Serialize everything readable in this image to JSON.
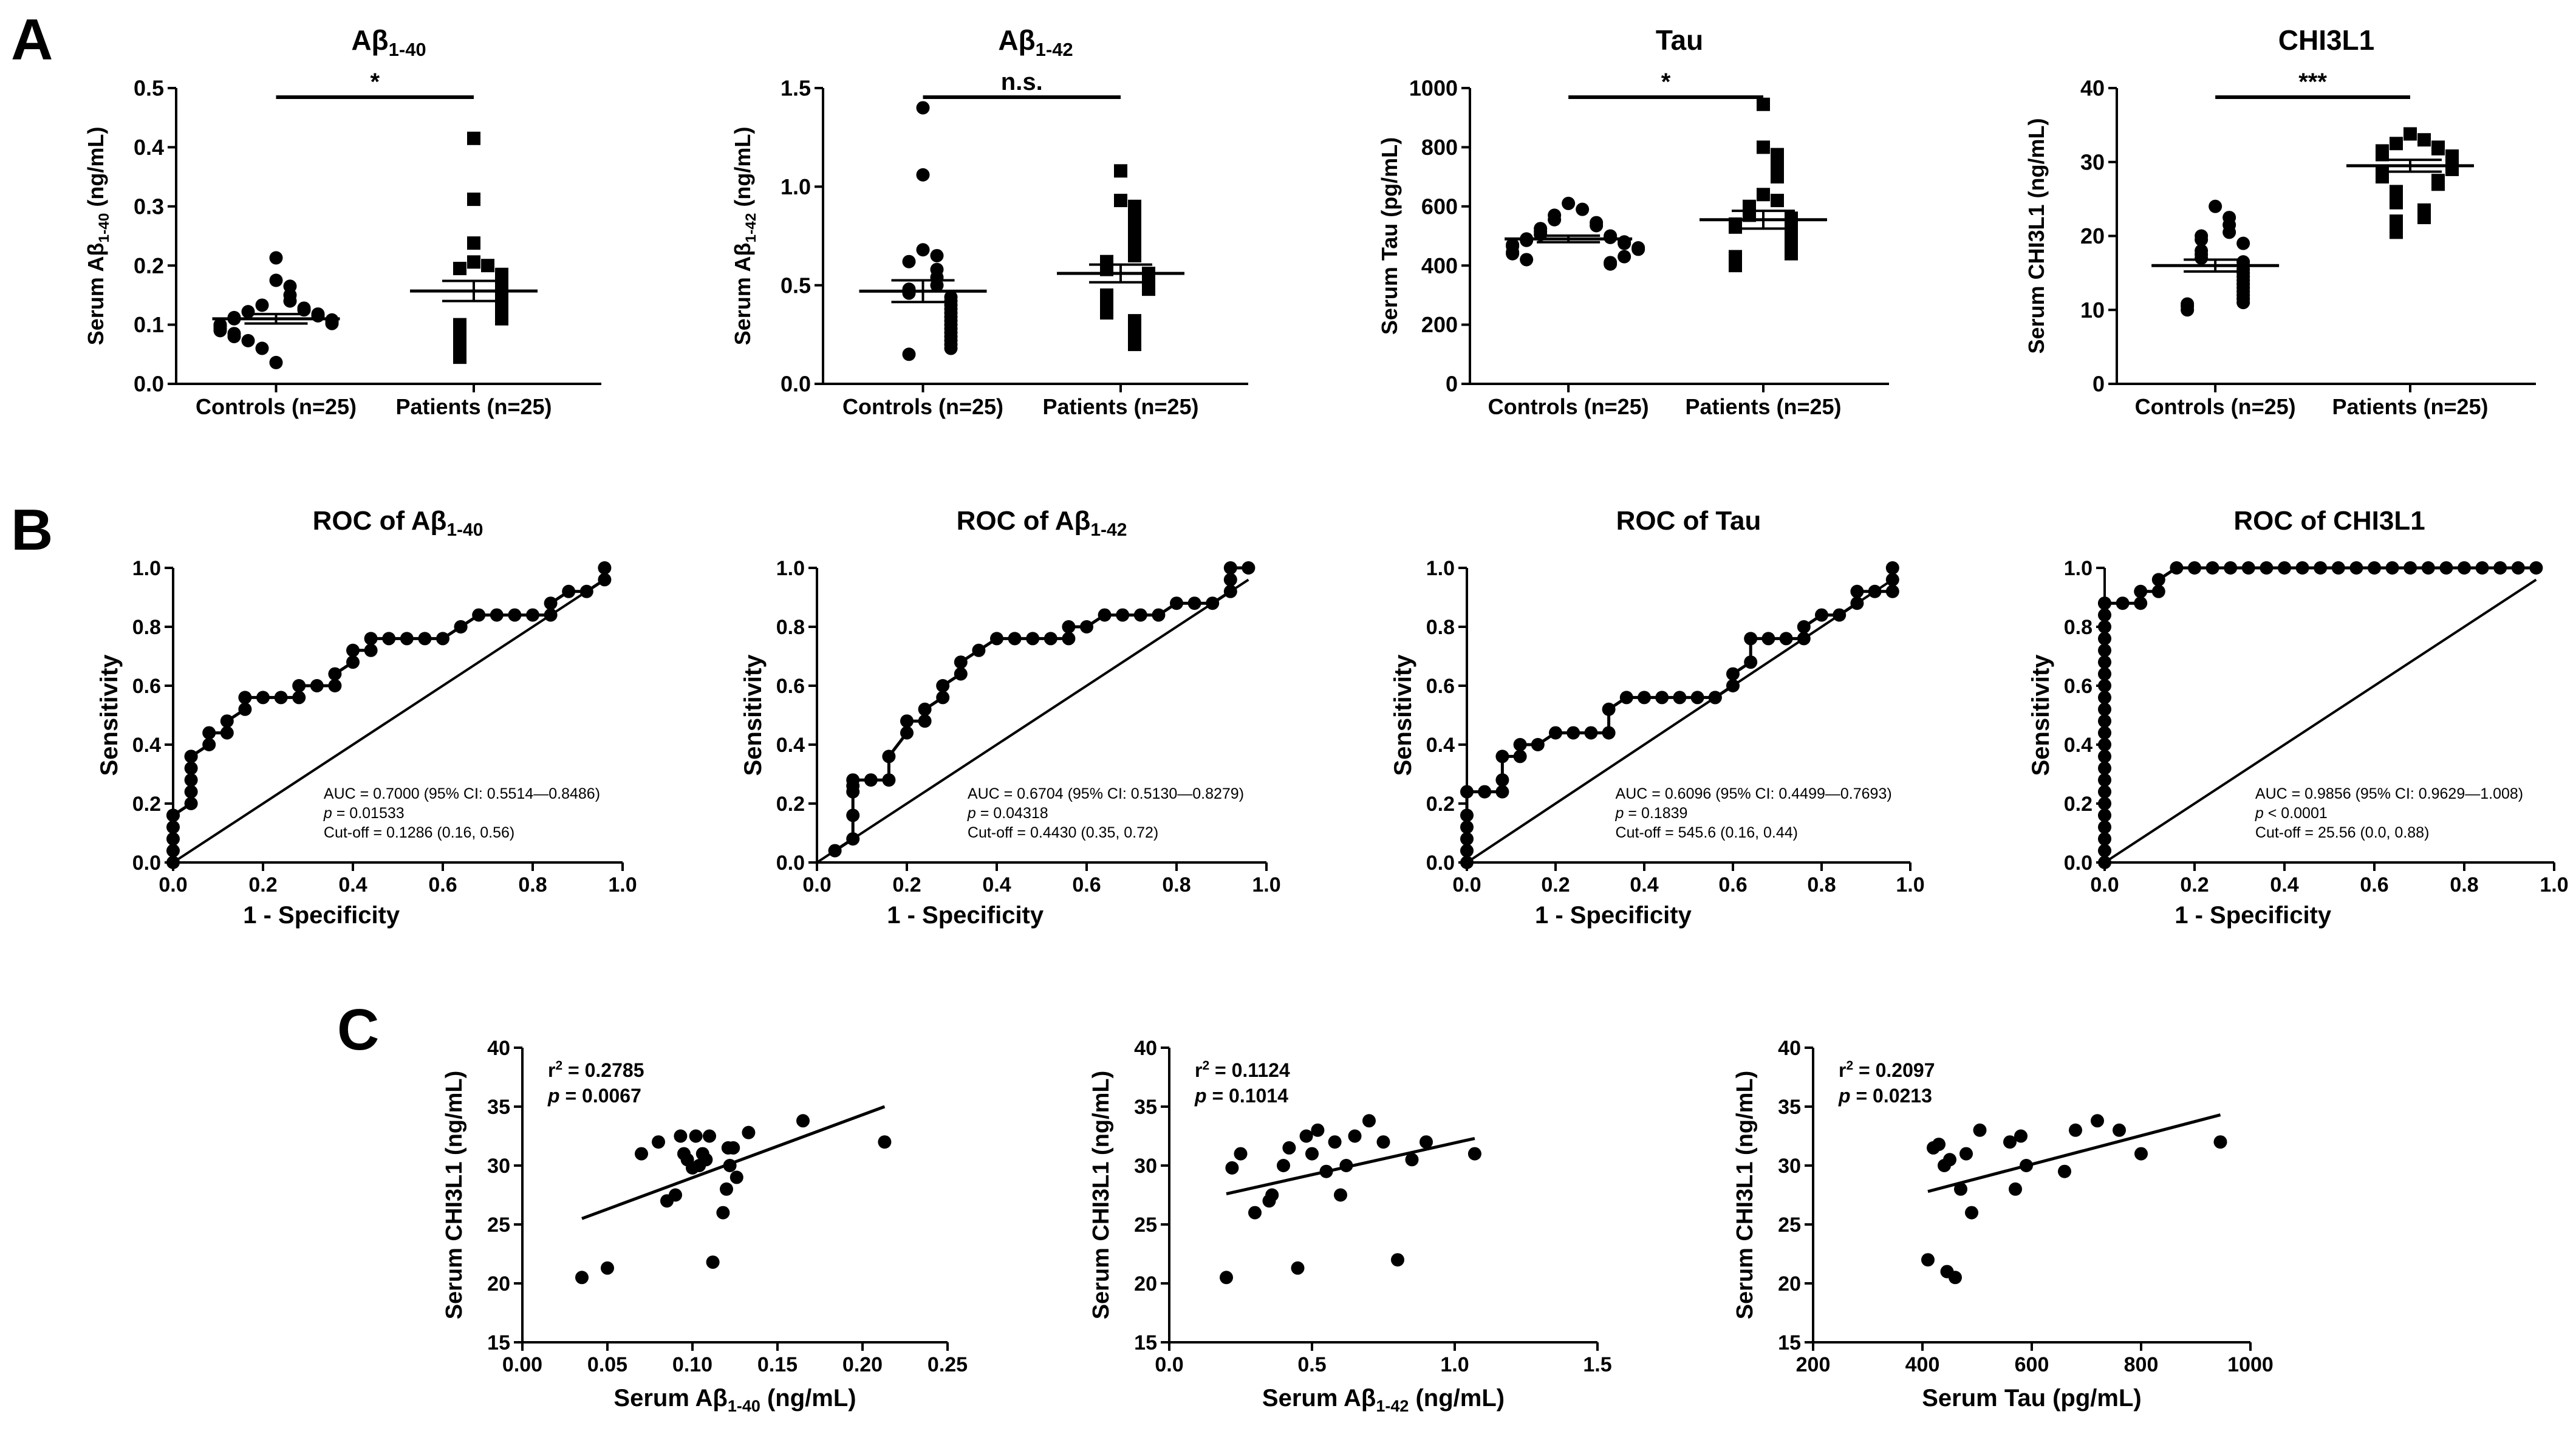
{
  "panel_labels": [
    "A",
    "B",
    "C"
  ],
  "chart_data": [
    {
      "type": "scatter",
      "panel": "A",
      "subtype": "dot-plot",
      "title": "Aβ",
      "title_sub": "1-40",
      "ylabel_pre": "Serum Aβ",
      "ylabel_sub": "1-40",
      "ylabel_post": " (ng/mL)",
      "ylim": [
        0,
        0.5
      ],
      "yticks": [
        "0.0",
        "0.1",
        "0.2",
        "0.3",
        "0.4",
        "0.5"
      ],
      "categories": [
        "Controls (n=25)",
        "Patients (n=25)"
      ],
      "significance": "*",
      "series": [
        {
          "name": "Controls (n=25)",
          "marker": "circle",
          "mean": 0.11,
          "sem": 0.008,
          "values": [
            0.213,
            0.175,
            0.165,
            0.15,
            0.14,
            0.133,
            0.128,
            0.125,
            0.122,
            0.118,
            0.115,
            0.112,
            0.11,
            0.108,
            0.105,
            0.102,
            0.1,
            0.097,
            0.093,
            0.09,
            0.085,
            0.08,
            0.073,
            0.06,
            0.036
          ]
        },
        {
          "name": "Patients (n=25)",
          "marker": "square",
          "mean": 0.157,
          "sem": 0.017,
          "values": [
            0.415,
            0.312,
            0.238,
            0.206,
            0.2,
            0.195,
            0.185,
            0.178,
            0.173,
            0.168,
            0.16,
            0.152,
            0.146,
            0.14,
            0.132,
            0.125,
            0.118,
            0.11,
            0.1,
            0.095,
            0.085,
            0.075,
            0.065,
            0.055,
            0.045
          ]
        }
      ]
    },
    {
      "type": "scatter",
      "panel": "A",
      "subtype": "dot-plot",
      "title": "Aβ",
      "title_sub": "1-42",
      "ylabel_pre": "Serum Aβ",
      "ylabel_sub": "1-42",
      "ylabel_post": " (ng/mL)",
      "ylim": [
        0,
        1.5
      ],
      "yticks": [
        "0.0",
        "0.5",
        "1.0",
        "1.5"
      ],
      "categories": [
        "Controls (n=25)",
        "Patients (n=25)"
      ],
      "significance": "n.s.",
      "series": [
        {
          "name": "Controls (n=25)",
          "marker": "circle",
          "mean": 0.47,
          "sem": 0.055,
          "values": [
            1.4,
            1.06,
            0.68,
            0.65,
            0.62,
            0.58,
            0.54,
            0.5,
            0.48,
            0.46,
            0.44,
            0.42,
            0.4,
            0.38,
            0.36,
            0.34,
            0.32,
            0.3,
            0.28,
            0.26,
            0.24,
            0.22,
            0.2,
            0.18,
            0.15
          ]
        },
        {
          "name": "Patients (n=25)",
          "marker": "square",
          "mean": 0.56,
          "sem": 0.045,
          "values": [
            1.08,
            0.93,
            0.9,
            0.85,
            0.8,
            0.75,
            0.72,
            0.68,
            0.65,
            0.62,
            0.6,
            0.58,
            0.56,
            0.54,
            0.52,
            0.5,
            0.48,
            0.45,
            0.42,
            0.4,
            0.36,
            0.32,
            0.28,
            0.25,
            0.2
          ]
        }
      ]
    },
    {
      "type": "scatter",
      "panel": "A",
      "subtype": "dot-plot",
      "title": "Tau",
      "title_sub": "",
      "ylabel_pre": "Serum Tau (pg/mL)",
      "ylabel_sub": "",
      "ylabel_post": "",
      "ylim": [
        0,
        1000
      ],
      "yticks": [
        "0",
        "200",
        "400",
        "600",
        "800",
        "1000"
      ],
      "categories": [
        "Controls (n=25)",
        "Patients (n=25)"
      ],
      "significance": "*",
      "series": [
        {
          "name": "Controls (n=25)",
          "marker": "circle",
          "mean": 490,
          "sem": 11,
          "values": [
            610,
            590,
            570,
            555,
            545,
            535,
            525,
            515,
            505,
            500,
            495,
            490,
            485,
            480,
            475,
            470,
            465,
            460,
            455,
            445,
            440,
            430,
            420,
            410,
            405
          ]
        },
        {
          "name": "Patients (n=25)",
          "marker": "square",
          "mean": 555,
          "sem": 30,
          "values": [
            945,
            800,
            775,
            740,
            700,
            640,
            620,
            600,
            580,
            570,
            560,
            550,
            540,
            530,
            510,
            500,
            490,
            470,
            460,
            450,
            440,
            430,
            420,
            410,
            400
          ]
        }
      ]
    },
    {
      "type": "scatter",
      "panel": "A",
      "subtype": "dot-plot",
      "title": "CHI3L1",
      "title_sub": "",
      "ylabel_pre": "Serum CHI3L1 (ng/mL)",
      "ylabel_sub": "",
      "ylabel_post": "",
      "ylim": [
        0,
        40
      ],
      "yticks": [
        "0",
        "10",
        "20",
        "30",
        "40"
      ],
      "categories": [
        "Controls (n=25)",
        "Patients (n=25)"
      ],
      "significance": "***",
      "series": [
        {
          "name": "Controls (n=25)",
          "marker": "circle",
          "mean": 16.0,
          "sem": 0.8,
          "values": [
            24.0,
            22.5,
            21.5,
            20.5,
            20.0,
            19.5,
            19.0,
            18.0,
            17.5,
            17.0,
            16.5,
            16.0,
            15.5,
            15.0,
            14.5,
            14.0,
            13.5,
            13.0,
            12.5,
            12.0,
            11.5,
            11.0,
            10.8,
            10.5,
            10.0
          ]
        },
        {
          "name": "Patients (n=25)",
          "marker": "square",
          "mean": 29.5,
          "sem": 0.8,
          "values": [
            33.8,
            33.0,
            32.5,
            32.0,
            31.8,
            31.5,
            31.0,
            30.8,
            30.5,
            30.0,
            29.8,
            29.5,
            29.0,
            28.5,
            28.0,
            27.5,
            27.0,
            26.0,
            25.5,
            24.5,
            23.5,
            22.5,
            22.0,
            21.0,
            20.5
          ]
        }
      ]
    },
    {
      "type": "line",
      "panel": "B",
      "subtype": "roc",
      "title_pre": "ROC of Aβ",
      "title_sub": "1-40",
      "xlabel": "1 - Specificity",
      "ylabel": "Sensitivity",
      "xlim": [
        0,
        1
      ],
      "ylim": [
        0,
        1
      ],
      "xticks": [
        "0.0",
        "0.2",
        "0.4",
        "0.6",
        "0.8",
        "1.0"
      ],
      "yticks": [
        "0.0",
        "0.2",
        "0.4",
        "0.6",
        "0.8",
        "1.0"
      ],
      "annotation": {
        "auc": "AUC = 0.7000 (95% CI: 0.5514—0.8486)",
        "p_label": "p",
        "p_value": " = 0.01533",
        "cutoff": "Cut-off = 0.1286 (0.16, 0.56)"
      },
      "x": [
        0,
        0,
        0,
        0,
        0,
        0,
        0.04,
        0.04,
        0.04,
        0.04,
        0.04,
        0.04,
        0.08,
        0.08,
        0.12,
        0.12,
        0.16,
        0.16,
        0.2,
        0.24,
        0.28,
        0.28,
        0.32,
        0.36,
        0.36,
        0.4,
        0.4,
        0.44,
        0.44,
        0.48,
        0.52,
        0.56,
        0.6,
        0.64,
        0.64,
        0.68,
        0.72,
        0.76,
        0.8,
        0.84,
        0.84,
        0.88,
        0.92,
        0.96,
        0.96
      ],
      "y": [
        0,
        0.04,
        0.08,
        0.12,
        0.16,
        0.16,
        0.2,
        0.24,
        0.28,
        0.32,
        0.36,
        0.36,
        0.4,
        0.44,
        0.44,
        0.48,
        0.52,
        0.56,
        0.56,
        0.56,
        0.56,
        0.6,
        0.6,
        0.6,
        0.64,
        0.68,
        0.72,
        0.72,
        0.76,
        0.76,
        0.76,
        0.76,
        0.76,
        0.8,
        0.8,
        0.84,
        0.84,
        0.84,
        0.84,
        0.84,
        0.88,
        0.92,
        0.92,
        0.96,
        1.0
      ]
    },
    {
      "type": "line",
      "panel": "B",
      "subtype": "roc",
      "title_pre": "ROC of Aβ",
      "title_sub": "1-42",
      "xlabel": "1 - Specificity",
      "ylabel": "Sensitivity",
      "xlim": [
        0,
        1
      ],
      "ylim": [
        0,
        1
      ],
      "xticks": [
        "0.0",
        "0.2",
        "0.4",
        "0.6",
        "0.8",
        "1.0"
      ],
      "yticks": [
        "0.0",
        "0.2",
        "0.4",
        "0.6",
        "0.8",
        "1.0"
      ],
      "annotation": {
        "auc": "AUC = 0.6704 (95% CI: 0.5130—0.8279)",
        "p_label": "p",
        "p_value": " = 0.04318",
        "cutoff": "Cut-off = 0.4430 (0.35, 0.72)"
      },
      "x": [
        0.04,
        0.08,
        0.08,
        0.08,
        0.08,
        0.08,
        0.12,
        0.16,
        0.16,
        0.2,
        0.2,
        0.24,
        0.24,
        0.28,
        0.28,
        0.32,
        0.32,
        0.36,
        0.4,
        0.44,
        0.48,
        0.52,
        0.56,
        0.56,
        0.6,
        0.64,
        0.68,
        0.72,
        0.76,
        0.8,
        0.84,
        0.88,
        0.92,
        0.92,
        0.92,
        0.96
      ],
      "y": [
        0.04,
        0.08,
        0.16,
        0.24,
        0.26,
        0.28,
        0.28,
        0.28,
        0.36,
        0.44,
        0.48,
        0.48,
        0.52,
        0.56,
        0.6,
        0.64,
        0.68,
        0.72,
        0.76,
        0.76,
        0.76,
        0.76,
        0.76,
        0.8,
        0.8,
        0.84,
        0.84,
        0.84,
        0.84,
        0.88,
        0.88,
        0.88,
        0.92,
        0.96,
        1.0,
        1.0
      ]
    },
    {
      "type": "line",
      "panel": "B",
      "subtype": "roc",
      "title_pre": "ROC of Tau",
      "title_sub": "",
      "xlabel": "1 - Specificity",
      "ylabel": "Sensitivity",
      "xlim": [
        0,
        1
      ],
      "ylim": [
        0,
        1
      ],
      "xticks": [
        "0.0",
        "0.2",
        "0.4",
        "0.6",
        "0.8",
        "1.0"
      ],
      "yticks": [
        "0.0",
        "0.2",
        "0.4",
        "0.6",
        "0.8",
        "1.0"
      ],
      "annotation": {
        "auc": "AUC = 0.6096 (95% CI: 0.4499—0.7693)",
        "p_label": "p",
        "p_value": " = 0.1839",
        "cutoff": "Cut-off = 545.6 (0.16, 0.44)"
      },
      "x": [
        0,
        0,
        0,
        0,
        0,
        0,
        0.04,
        0.08,
        0.08,
        0.08,
        0.12,
        0.12,
        0.16,
        0.2,
        0.24,
        0.28,
        0.32,
        0.32,
        0.36,
        0.4,
        0.44,
        0.48,
        0.52,
        0.56,
        0.56,
        0.6,
        0.6,
        0.64,
        0.64,
        0.68,
        0.72,
        0.76,
        0.76,
        0.8,
        0.84,
        0.88,
        0.88,
        0.92,
        0.96,
        0.96,
        0.96
      ],
      "y": [
        0,
        0.04,
        0.08,
        0.12,
        0.16,
        0.24,
        0.24,
        0.24,
        0.28,
        0.36,
        0.36,
        0.4,
        0.4,
        0.44,
        0.44,
        0.44,
        0.44,
        0.52,
        0.56,
        0.56,
        0.56,
        0.56,
        0.56,
        0.56,
        0.56,
        0.6,
        0.64,
        0.68,
        0.76,
        0.76,
        0.76,
        0.76,
        0.8,
        0.84,
        0.84,
        0.88,
        0.92,
        0.92,
        0.92,
        0.96,
        1.0
      ]
    },
    {
      "type": "line",
      "panel": "B",
      "subtype": "roc",
      "title_pre": "ROC of CHI3L1",
      "title_sub": "",
      "xlabel": "1 - Specificity",
      "ylabel": "Sensitivity",
      "xlim": [
        0,
        1
      ],
      "ylim": [
        0,
        1
      ],
      "xticks": [
        "0.0",
        "0.2",
        "0.4",
        "0.6",
        "0.8",
        "1.0"
      ],
      "yticks": [
        "0.0",
        "0.2",
        "0.4",
        "0.6",
        "0.8",
        "1.0"
      ],
      "annotation": {
        "auc": "AUC = 0.9856 (95% CI: 0.9629—1.008)",
        "p_label": "p",
        "p_value": " < 0.0001",
        "cutoff": "Cut-off = 25.56 (0.0, 0.88)"
      },
      "x": [
        0,
        0,
        0,
        0,
        0,
        0,
        0,
        0,
        0,
        0,
        0,
        0,
        0,
        0,
        0,
        0,
        0,
        0,
        0,
        0,
        0,
        0,
        0,
        0,
        0.04,
        0.08,
        0.08,
        0.12,
        0.12,
        0.16,
        0.2,
        0.24,
        0.28,
        0.32,
        0.36,
        0.4,
        0.44,
        0.48,
        0.52,
        0.56,
        0.6,
        0.64,
        0.68,
        0.72,
        0.76,
        0.8,
        0.84,
        0.88,
        0.92,
        0.96
      ],
      "y": [
        0,
        0.04,
        0.08,
        0.12,
        0.16,
        0.2,
        0.24,
        0.28,
        0.32,
        0.36,
        0.4,
        0.44,
        0.48,
        0.52,
        0.56,
        0.6,
        0.64,
        0.68,
        0.72,
        0.76,
        0.8,
        0.84,
        0.88,
        0.88,
        0.88,
        0.88,
        0.92,
        0.92,
        0.96,
        1.0,
        1.0,
        1.0,
        1.0,
        1.0,
        1.0,
        1.0,
        1.0,
        1.0,
        1.0,
        1.0,
        1.0,
        1.0,
        1.0,
        1.0,
        1.0,
        1.0,
        1.0,
        1.0,
        1.0,
        1.0
      ]
    },
    {
      "type": "scatter",
      "panel": "C",
      "subtype": "correlation",
      "xlabel_pre": "Serum Aβ",
      "xlabel_sub": "1-40",
      "xlabel_post": " (ng/mL)",
      "ylabel": "Serum CHI3L1 (ng/mL)",
      "xlim": [
        0,
        0.25
      ],
      "ylim": [
        15,
        40
      ],
      "xticks": [
        "0.00",
        "0.05",
        "0.10",
        "0.15",
        "0.20",
        "0.25"
      ],
      "yticks": [
        "15",
        "20",
        "25",
        "30",
        "35",
        "40"
      ],
      "r2_label": "r",
      "r2_value": " = 0.2785",
      "p_label": "p",
      "p_value": " = 0.0067",
      "fit": {
        "x": [
          0.035,
          0.213
        ],
        "y": [
          25.5,
          35.0
        ]
      },
      "x": [
        0.035,
        0.05,
        0.07,
        0.08,
        0.085,
        0.09,
        0.093,
        0.095,
        0.097,
        0.1,
        0.102,
        0.104,
        0.106,
        0.108,
        0.11,
        0.112,
        0.118,
        0.12,
        0.121,
        0.122,
        0.124,
        0.126,
        0.133,
        0.165,
        0.213
      ],
      "y": [
        20.5,
        21.3,
        31.0,
        32.0,
        27.0,
        27.5,
        32.5,
        31.0,
        30.5,
        29.8,
        32.5,
        30.0,
        31.0,
        30.5,
        32.5,
        21.8,
        26.0,
        28.0,
        31.5,
        30.0,
        31.5,
        29.0,
        32.8,
        33.8,
        32.0
      ]
    },
    {
      "type": "scatter",
      "panel": "C",
      "subtype": "correlation",
      "xlabel_pre": "Serum Aβ",
      "xlabel_sub": "1-42",
      "xlabel_post": " (ng/mL)",
      "ylabel": "Serum CHI3L1 (ng/mL)",
      "xlim": [
        0,
        1.5
      ],
      "ylim": [
        15,
        40
      ],
      "xticks": [
        "0.0",
        "0.5",
        "1.0",
        "1.5"
      ],
      "yticks": [
        "15",
        "20",
        "25",
        "30",
        "35",
        "40"
      ],
      "r2_label": "r",
      "r2_value": " = 0.1124",
      "p_label": "p",
      "p_value": " = 0.1014",
      "fit": {
        "x": [
          0.2,
          1.07
        ],
        "y": [
          27.6,
          32.3
        ]
      },
      "x": [
        0.2,
        0.22,
        0.25,
        0.3,
        0.35,
        0.36,
        0.4,
        0.42,
        0.45,
        0.48,
        0.5,
        0.52,
        0.55,
        0.58,
        0.6,
        0.62,
        0.65,
        0.7,
        0.75,
        0.8,
        0.85,
        0.9,
        1.07
      ],
      "y": [
        20.5,
        29.8,
        31.0,
        26.0,
        27.0,
        27.5,
        30.0,
        31.5,
        21.3,
        32.5,
        31.0,
        33.0,
        29.5,
        32.0,
        27.5,
        30.0,
        32.5,
        33.8,
        32.0,
        22.0,
        30.5,
        32.0,
        31.0
      ]
    },
    {
      "type": "scatter",
      "panel": "C",
      "subtype": "correlation",
      "xlabel_pre": "Serum Tau (pg/mL)",
      "xlabel_sub": "",
      "xlabel_post": "",
      "ylabel": "Serum CHI3L1 (ng/mL)",
      "xlim": [
        200,
        1000
      ],
      "ylim": [
        15,
        40
      ],
      "xticks": [
        "200",
        "400",
        "600",
        "800",
        "1000"
      ],
      "yticks": [
        "15",
        "20",
        "25",
        "30",
        "35",
        "40"
      ],
      "r2_label": "r",
      "r2_value": " = 0.2097",
      "p_label": "p",
      "p_value": " = 0.0213",
      "fit": {
        "x": [
          410,
          945
        ],
        "y": [
          27.8,
          34.3
        ]
      },
      "x": [
        410,
        420,
        430,
        440,
        445,
        450,
        460,
        470,
        480,
        490,
        505,
        560,
        570,
        580,
        590,
        660,
        680,
        720,
        760,
        800,
        945
      ],
      "y": [
        22.0,
        31.5,
        31.8,
        30.0,
        21.0,
        30.5,
        20.5,
        28.0,
        31.0,
        26.0,
        33.0,
        32.0,
        28.0,
        32.5,
        30.0,
        29.5,
        33.0,
        33.8,
        33.0,
        31.0,
        32.0
      ]
    }
  ]
}
